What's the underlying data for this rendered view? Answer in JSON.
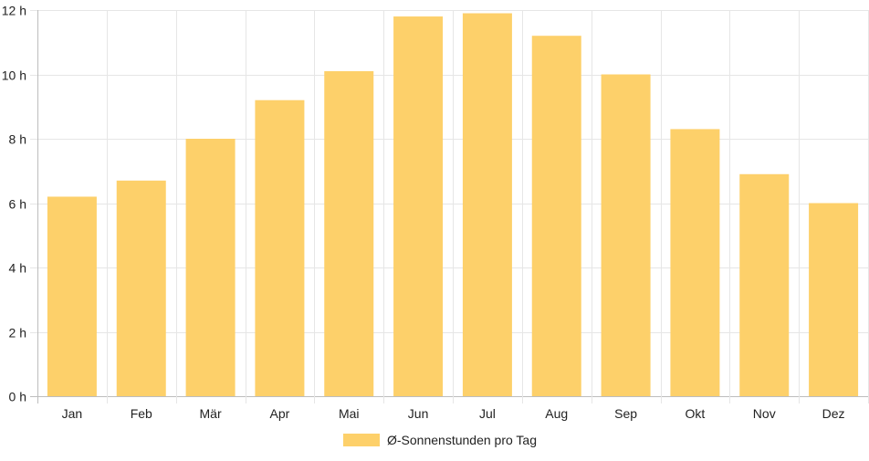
{
  "chart_data": {
    "type": "bar",
    "title": "",
    "xlabel": "",
    "ylabel": "",
    "categories": [
      "Jan",
      "Feb",
      "Mär",
      "Apr",
      "Mai",
      "Jun",
      "Jul",
      "Aug",
      "Sep",
      "Okt",
      "Nov",
      "Dez"
    ],
    "series": [
      {
        "name": "Ø-Sonnenstunden pro Tag",
        "color": "#fdd06a",
        "values": [
          6.2,
          6.7,
          8.0,
          9.2,
          10.1,
          11.8,
          11.9,
          11.2,
          10.0,
          8.3,
          6.9,
          6.0
        ]
      }
    ],
    "ylim": [
      0,
      12
    ],
    "y_ticks": [
      0,
      2,
      4,
      6,
      8,
      10,
      12
    ],
    "y_tick_suffix": " h",
    "grid": true,
    "legend_position": "bottom"
  }
}
